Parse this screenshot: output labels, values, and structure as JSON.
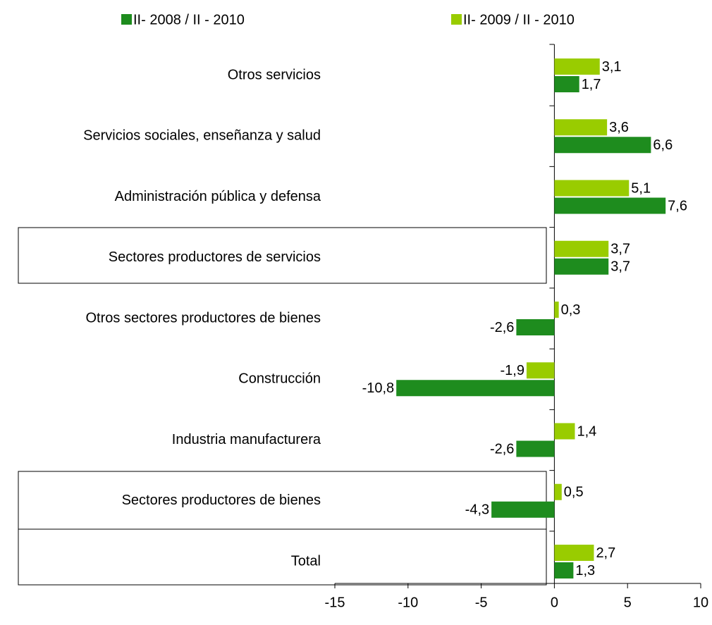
{
  "chart_data": {
    "type": "hbar",
    "categories": [
      "Otros servicios",
      "Servicios sociales, enseñanza y salud",
      "Administración pública y defensa",
      "Sectores productores de servicios",
      "Otros sectores productores de bienes",
      "Construcción",
      "Industria manufacturera",
      "Sectores productores de bienes",
      "Total"
    ],
    "series": [
      {
        "name": "II- 2008 / II - 2010",
        "color": "#1e8c1e",
        "values": [
          1.7,
          6.6,
          7.6,
          3.7,
          -2.6,
          -10.8,
          -2.6,
          -4.3,
          1.3
        ],
        "value_labels": [
          "1,7",
          "6,6",
          "7,6",
          "3,7",
          "-2,6",
          "-10,8",
          "-2,6",
          "-4,3",
          "1,3"
        ]
      },
      {
        "name": "II- 2009 / II - 2010",
        "color": "#99cc00",
        "values": [
          3.1,
          3.6,
          5.1,
          3.7,
          0.3,
          -1.9,
          1.4,
          0.5,
          2.7
        ],
        "value_labels": [
          "3,1",
          "3,6",
          "5,1",
          "3,7",
          "0,3",
          "-1,9",
          "1,4",
          "0,5",
          "2,7"
        ]
      }
    ],
    "xlim": [
      -15,
      10
    ],
    "xticks": [
      -15,
      -10,
      -5,
      0,
      5,
      10
    ]
  }
}
